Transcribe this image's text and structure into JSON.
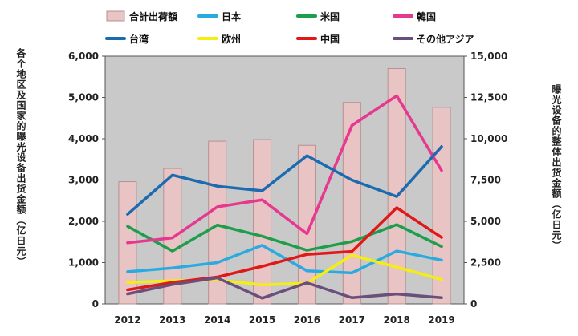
{
  "chart_data": {
    "type": "bar+line",
    "categories": [
      "2012",
      "2013",
      "2014",
      "2015",
      "2016",
      "2017",
      "2018",
      "2019"
    ],
    "left_axis": {
      "label": "各个地区及国家的曝光设备出货金额（亿日元）",
      "ylim": [
        0,
        6000
      ],
      "ticks": [
        "0",
        "1,000",
        "2,000",
        "3,000",
        "4,000",
        "5,000",
        "6,000"
      ]
    },
    "right_axis": {
      "label": "曝光设备的整体出货金额（亿日元）",
      "ylim": [
        0,
        15000
      ],
      "ticks": [
        "0",
        "2,500",
        "5,000",
        "7,500",
        "10,000",
        "12,500",
        "15,000"
      ]
    },
    "bar_series": {
      "name": "合計出荷額",
      "axis": "right",
      "color": "#e8c4c4",
      "stroke": "#b89090",
      "values": [
        7400,
        8200,
        9850,
        9950,
        9600,
        12200,
        14250,
        11900
      ]
    },
    "series": [
      {
        "name": "日本",
        "axis": "left",
        "color": "#29abe2",
        "values": [
          780,
          870,
          1000,
          1420,
          800,
          750,
          1280,
          1060
        ]
      },
      {
        "name": "米国",
        "axis": "left",
        "color": "#1e9e4a",
        "values": [
          1880,
          1280,
          1910,
          1640,
          1300,
          1510,
          1920,
          1390
        ]
      },
      {
        "name": "韓国",
        "axis": "left",
        "color": "#e6388f",
        "values": [
          1480,
          1600,
          2350,
          2520,
          1700,
          4320,
          5040,
          3230
        ]
      },
      {
        "name": "台湾",
        "axis": "left",
        "color": "#1c6bb0",
        "values": [
          2170,
          3120,
          2850,
          2740,
          3590,
          3000,
          2600,
          3810
        ]
      },
      {
        "name": "欧州",
        "axis": "left",
        "color": "#f5ee10",
        "values": [
          520,
          560,
          580,
          460,
          500,
          1180,
          890,
          590
        ]
      },
      {
        "name": "中国",
        "axis": "left",
        "color": "#e01818",
        "values": [
          340,
          520,
          650,
          910,
          1200,
          1270,
          2330,
          1610
        ]
      },
      {
        "name": "その他アジア",
        "axis": "left",
        "color": "#6a4e7c",
        "values": [
          240,
          470,
          630,
          140,
          510,
          150,
          240,
          150
        ]
      }
    ],
    "legend_rows": [
      [
        "合計出荷額",
        "日本",
        "米国",
        "韓国"
      ],
      [
        "台湾",
        "欧州",
        "中国",
        "その他アジア"
      ]
    ],
    "legend_placement": "top",
    "grid": false,
    "plot_background": "#c9c9c9"
  }
}
